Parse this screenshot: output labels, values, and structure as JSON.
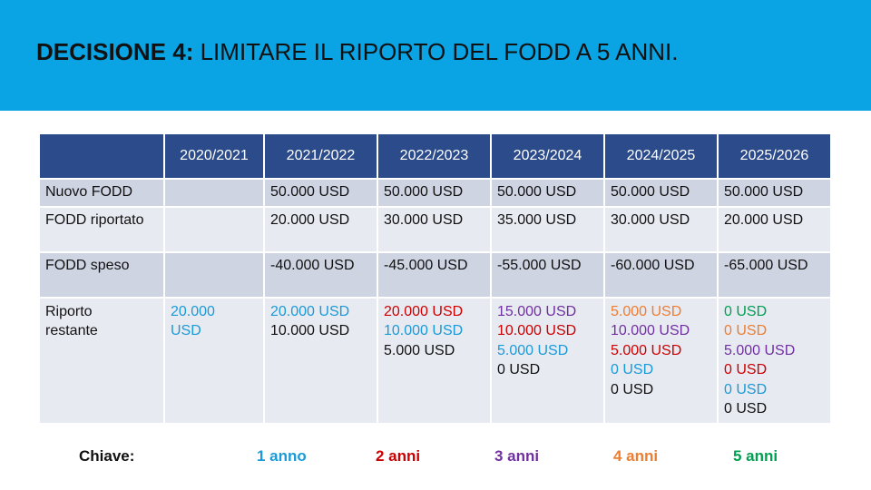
{
  "title": {
    "prefix": "DECISIONE 4:",
    "rest": " LIMITARE IL RIPORTO DEL FODD A 5 ANNI."
  },
  "colors": {
    "banner": "#0aa3e3",
    "header": "#2b4b8a",
    "year1": "#1a9ad6",
    "year2": "#cc0000",
    "year3": "#7030a0",
    "year4": "#ed7d31",
    "year5": "#00a050"
  },
  "table": {
    "headers": [
      "",
      "2020/2021",
      "2021/2022",
      "2022/2023",
      "2023/2024",
      "2024/2025",
      "2025/2026"
    ],
    "rows": [
      {
        "label": "Nuovo FODD",
        "cells": [
          "",
          "50.000 USD",
          "50.000 USD",
          "50.000 USD",
          "50.000 USD",
          "50.000 USD"
        ]
      },
      {
        "label": "FODD riportato",
        "cells": [
          "",
          "20.000 USD",
          "30.000 USD",
          "35.000 USD",
          "30.000 USD",
          "20.000 USD"
        ]
      },
      {
        "label": "FODD speso",
        "cells": [
          "",
          "-40.000 USD",
          "-45.000 USD",
          "-55.000 USD",
          "-60.000 USD",
          "-65.000 USD"
        ]
      }
    ],
    "remaining": {
      "label_line1": "Riporto",
      "label_line2": "restante",
      "col0": {
        "line1": "20.000",
        "line2": "USD"
      },
      "col1": [
        "20.000 USD",
        "10.000 USD"
      ],
      "col2": [
        "20.000 USD",
        "10.000 USD",
        "5.000 USD"
      ],
      "col3": [
        "15.000 USD",
        "10.000 USD",
        "5.000 USD",
        "0 USD"
      ],
      "col4": [
        "5.000 USD",
        "10.000 USD",
        "5.000 USD",
        "0 USD",
        "0 USD"
      ],
      "col5": [
        "0 USD",
        "0 USD",
        "5.000 USD",
        "0 USD",
        "0 USD",
        "0 USD"
      ]
    }
  },
  "legend": {
    "key_label": "Chiave:",
    "items": [
      "1 anno",
      "2 anni",
      "3 anni",
      "4 anni",
      "5 anni"
    ]
  }
}
